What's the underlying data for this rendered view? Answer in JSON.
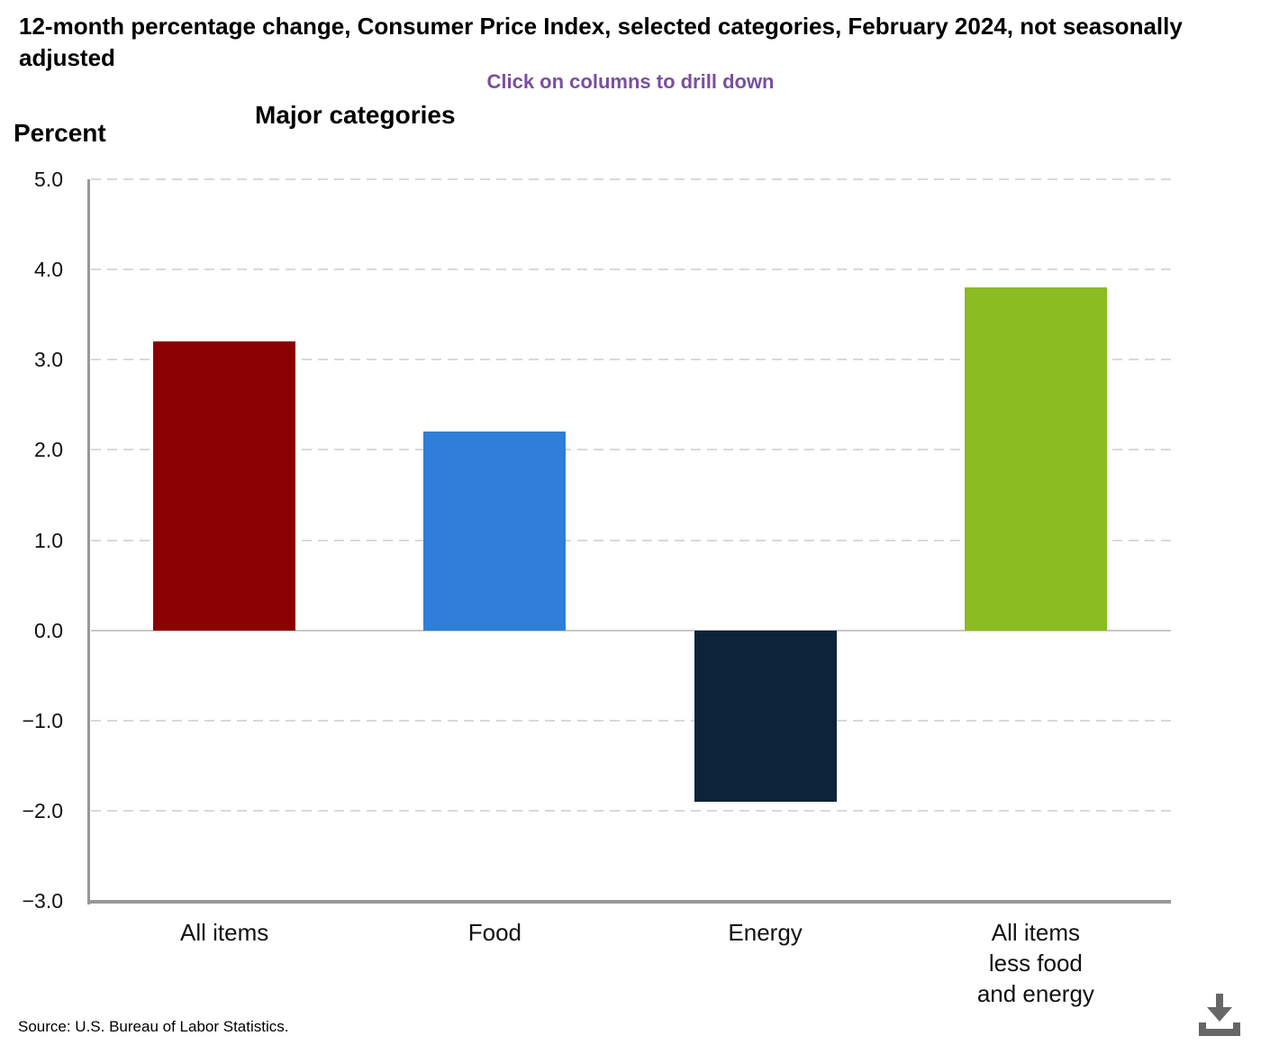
{
  "header": {
    "title": "12-month percentage change, Consumer Price Index, selected categories, February 2024, not seasonally adjusted",
    "subtitle": "Click on columns to drill down"
  },
  "chart": {
    "panel_title": "Major categories",
    "y_axis_label": "Percent"
  },
  "chart_data": {
    "type": "bar",
    "title": "Major categories",
    "ylabel": "Percent",
    "categories": [
      "All items",
      "Food",
      "Energy",
      "All items less food and energy"
    ],
    "category_label_lines": [
      [
        "All items"
      ],
      [
        "Food"
      ],
      [
        "Energy"
      ],
      [
        "All items",
        "less food",
        "and energy"
      ]
    ],
    "values": [
      3.2,
      2.2,
      -1.9,
      3.8
    ],
    "bar_colors": [
      "#8b0000",
      "#2f7ed8",
      "#0d233a",
      "#8bbc21"
    ],
    "ylim": [
      -3.0,
      5.0
    ],
    "yticks": [
      5.0,
      4.0,
      3.0,
      2.0,
      1.0,
      0.0,
      -1.0,
      -2.0,
      -3.0
    ],
    "ytick_labels": [
      "5.0",
      "4.0",
      "3.0",
      "2.0",
      "1.0",
      "0.0",
      "−1.0",
      "−2.0",
      "−3.0"
    ],
    "grid": "dashed-horizontal",
    "legend": "none"
  },
  "footer": {
    "source": "Source: U.S. Bureau of Labor Statistics."
  },
  "colors": {
    "subtitle_text": "#7a4f9f",
    "axis_line": "#989898",
    "gridline": "#d9d9d9",
    "zero_line": "#c8c8c8",
    "download_icon": "#666666"
  }
}
